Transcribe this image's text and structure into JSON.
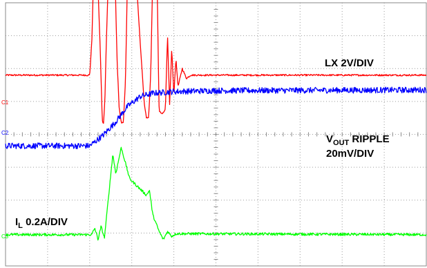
{
  "chart_data": {
    "type": "line",
    "title": "",
    "xlabel": "",
    "ylabel": "",
    "grid": true,
    "divisions": {
      "x": 10,
      "y": 8
    },
    "series": [
      {
        "id": "C1",
        "marker": "C1",
        "label": "LX 2V/DIV",
        "color": "#ff0000",
        "baseline_div": 5.8,
        "x_div": [
          0,
          2.0,
          2.05,
          2.1,
          2.12,
          2.18,
          2.25,
          2.3,
          2.33,
          2.36,
          2.4,
          2.45,
          2.5,
          2.6,
          2.65,
          2.7,
          2.75,
          2.8,
          2.85,
          2.9,
          3.0,
          3.1,
          3.2,
          3.3,
          3.35,
          3.4,
          3.45,
          3.5,
          3.55,
          3.6,
          3.65,
          3.7,
          3.75,
          3.8,
          3.85,
          3.9,
          3.95,
          4.0,
          4.05,
          4.1,
          4.2,
          4.3,
          4.4,
          10.0
        ],
        "y_div": [
          0,
          0,
          1.0,
          3.3,
          3.35,
          3.3,
          0.8,
          -1.4,
          -1.45,
          -0.8,
          1.2,
          3.2,
          3.25,
          3.2,
          0.5,
          -1.0,
          -1.45,
          -1.45,
          -0.2,
          3.1,
          3.15,
          3.1,
          1.0,
          -0.9,
          -1.3,
          -1.3,
          0.0,
          3.1,
          3.1,
          3.0,
          -1.1,
          -1.15,
          -1.15,
          -1.0,
          1.2,
          -0.9,
          0.8,
          -0.6,
          0.5,
          -0.35,
          0.2,
          -0.1,
          0.0,
          0
        ]
      },
      {
        "id": "C2",
        "marker": "C2",
        "label": "VOUT RIPPLE 20mV/DIV",
        "label_main": "V",
        "label_sub": "OUT",
        "label_rest": " RIPPLE",
        "label_line2": "20mV/DIV",
        "color": "#0000ff",
        "baseline_div": 3.65,
        "x_div": [
          0,
          2.0,
          2.3,
          2.6,
          2.9,
          3.2,
          3.5,
          4.0,
          5.0,
          10.0
        ],
        "y_div": [
          0,
          0.0,
          0.3,
          0.7,
          1.2,
          1.5,
          1.6,
          1.65,
          1.68,
          1.7
        ]
      },
      {
        "id": "C3",
        "marker": "C3",
        "label": "IL 0.2A/DIV",
        "label_main": "I",
        "label_sub": "L",
        "label_rest": " 0.2A/DIV",
        "color": "#00ff00",
        "baseline_div": 0.95,
        "x_div": [
          0,
          2.05,
          2.12,
          2.2,
          2.27,
          2.35,
          2.55,
          2.62,
          2.75,
          2.95,
          3.35,
          3.42,
          3.5,
          3.65,
          3.75,
          3.85,
          3.95,
          4.05,
          10.0
        ],
        "y_div": [
          0,
          0,
          0.2,
          -0.15,
          0.25,
          -0.1,
          2.45,
          1.85,
          2.65,
          1.7,
          1.2,
          1.35,
          0.6,
          0.1,
          -0.15,
          0.1,
          -0.05,
          0.03,
          0
        ]
      }
    ]
  }
}
